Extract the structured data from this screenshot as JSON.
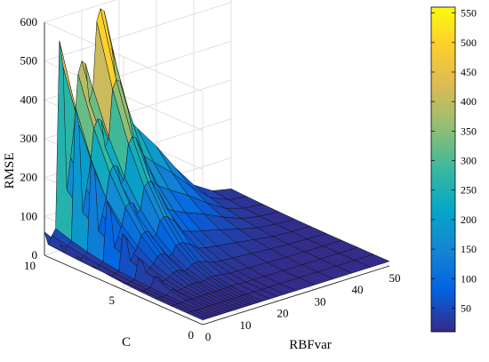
{
  "chart_data": {
    "type": "surface",
    "title": "",
    "xlabel": "RBFvar",
    "ylabel": "C",
    "zlabel": "RMSE",
    "x_ticks": [
      0,
      10,
      20,
      30,
      40,
      50
    ],
    "y_ticks": [
      0,
      5,
      10
    ],
    "z_ticks": [
      0,
      100,
      200,
      300,
      400,
      500,
      600
    ],
    "xlim": [
      0,
      50
    ],
    "ylim": [
      0,
      10
    ],
    "zlim": [
      0,
      600
    ],
    "grid": true,
    "colormap": "parula",
    "colorbar": {
      "ticks": [
        50,
        100,
        150,
        200,
        250,
        300,
        350,
        400,
        450,
        500,
        550
      ],
      "range": [
        10,
        560
      ],
      "placement": "right"
    },
    "surface": {
      "C": [
        0,
        1,
        2,
        3,
        4,
        5,
        6,
        7,
        8,
        9,
        10
      ],
      "rbfvar_samples": [
        0,
        1,
        2,
        3,
        4,
        5,
        6,
        7,
        8,
        9,
        10,
        11,
        12,
        13,
        14,
        15,
        16,
        18,
        20,
        22,
        25,
        30,
        35,
        40,
        45,
        50
      ],
      "rmse_at_C10": [
        60,
        25,
        45,
        60,
        540,
        470,
        150,
        230,
        310,
        440,
        470,
        460,
        360,
        390,
        560,
        590,
        580,
        480,
        330,
        290,
        250,
        190,
        120,
        60,
        30,
        20
      ],
      "peaks": [
        {
          "RBFvar": 4,
          "C": 10,
          "RMSE": 540
        },
        {
          "RBFvar": 10,
          "C": 10,
          "RMSE": 470
        },
        {
          "RBFvar": 15,
          "C": 10,
          "RMSE": 590
        }
      ],
      "floor_RMSE": 12
    }
  }
}
